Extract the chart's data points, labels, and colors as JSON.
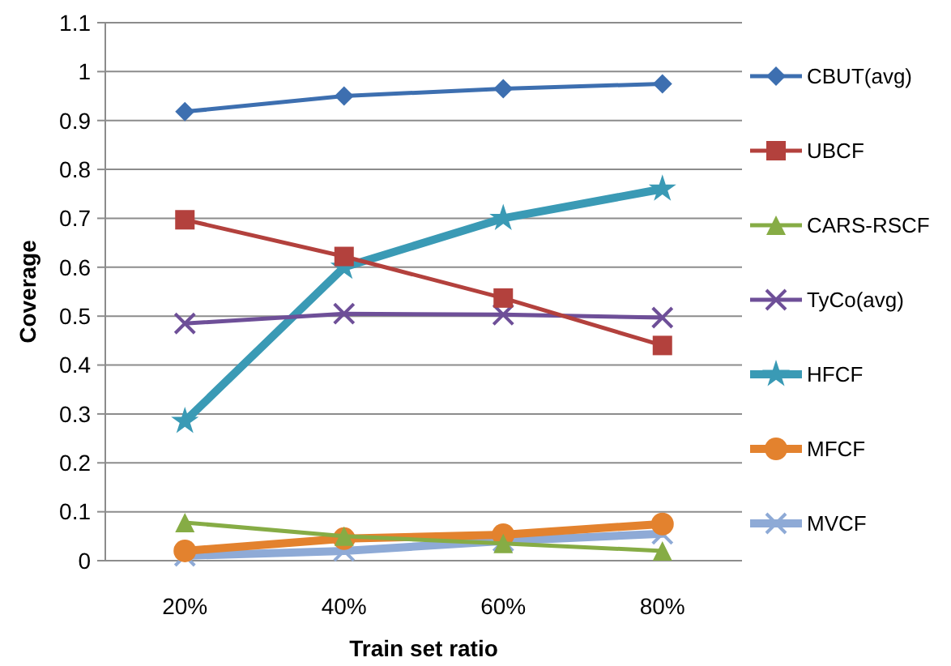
{
  "chart_data": {
    "type": "line",
    "xlabel": "Train set ratio",
    "ylabel": "Coverage",
    "categories": [
      "20%",
      "40%",
      "60%",
      "80%"
    ],
    "ylim": [
      0,
      1.1
    ],
    "yticks": [
      0,
      0.1,
      0.2,
      0.3,
      0.4,
      0.5,
      0.6,
      0.7,
      0.8,
      0.9,
      1,
      1.1
    ],
    "grid": "y",
    "legend": "right",
    "series": [
      {
        "name": "CBUT(avg)",
        "color": "#3d6fb0",
        "marker": "diamond",
        "values": [
          0.918,
          0.95,
          0.965,
          0.975
        ]
      },
      {
        "name": "UBCF",
        "color": "#b3413d",
        "marker": "square",
        "values": [
          0.697,
          0.622,
          0.537,
          0.44
        ]
      },
      {
        "name": "CARS-RSCF",
        "color": "#86ac45",
        "marker": "triangle",
        "values": [
          0.078,
          0.05,
          0.035,
          0.02
        ]
      },
      {
        "name": "TyCo(avg)",
        "color": "#6e4f98",
        "marker": "cross",
        "values": [
          0.485,
          0.505,
          0.503,
          0.497
        ]
      },
      {
        "name": "HFCF",
        "color": "#3a9ab5",
        "marker": "star",
        "values": [
          0.285,
          0.6,
          0.7,
          0.76
        ]
      },
      {
        "name": "MFCF",
        "color": "#e3822e",
        "marker": "circle",
        "values": [
          0.02,
          0.045,
          0.053,
          0.075
        ]
      },
      {
        "name": "MVCF",
        "color": "#8eaad6",
        "marker": "cross",
        "values": [
          0.01,
          0.02,
          0.04,
          0.055
        ]
      }
    ]
  }
}
